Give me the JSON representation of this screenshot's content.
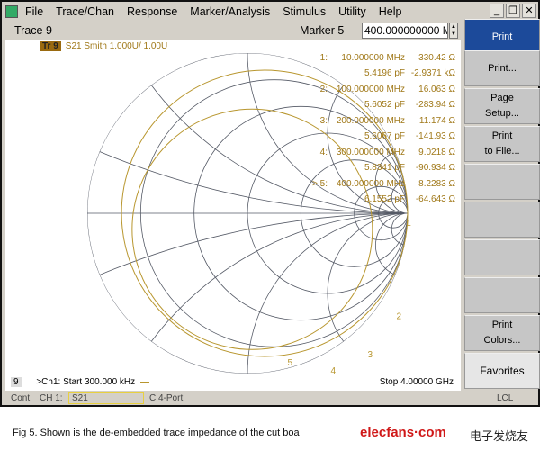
{
  "menubar": {
    "items": [
      "File",
      "Trace/Chan",
      "Response",
      "Marker/Analysis",
      "Stimulus",
      "Utility",
      "Help"
    ]
  },
  "window_controls": [
    "_",
    "❐",
    "✕"
  ],
  "tracebar": {
    "title": "Trace 9",
    "marker_label": "Marker 5",
    "marker_value": "400.000000000 MHz"
  },
  "trace_label": {
    "badge": "Tr 9",
    "text": "S21 Smith 1.000U/  1.00U"
  },
  "markers": [
    {
      "id": "1:",
      "freq": "10.000000 MHz",
      "r": "330.42 Ω",
      "c": "5.4196 pF",
      "x": "-2.9371 kΩ"
    },
    {
      "id": "2:",
      "freq": "100.000000 MHz",
      "r": "16.063 Ω",
      "c": "5.6052 pF",
      "x": "-283.94 Ω"
    },
    {
      "id": "3:",
      "freq": "200.000000 MHz",
      "r": "11.174 Ω",
      "c": "5.6067 pF",
      "x": "-141.93 Ω"
    },
    {
      "id": "4:",
      "freq": "300.000000 MHz",
      "r": "9.0218 Ω",
      "c": "5.8341 pF",
      "x": "-90.934 Ω"
    },
    {
      "id": "> 5:",
      "freq": "400.000000 MHz",
      "r": "8.2283 Ω",
      "c": "6.1552 pF",
      "x": "-64.643 Ω"
    }
  ],
  "chart_marker_labels": [
    "1",
    "2",
    "3",
    "4",
    "5"
  ],
  "colors": {
    "trace": "#b8962e",
    "grid": "#555a66",
    "active_button": "#1c4a9a"
  },
  "footer": {
    "channel_badge": "9",
    "start": ">Ch1: Start  300.000 kHz",
    "stop": "Stop  4.00000 GHz"
  },
  "sidebar": {
    "buttons": [
      "Print",
      "Print...",
      "Page\nSetup...",
      "Print\nto File...",
      "",
      "",
      "",
      "",
      "Print\nColors...",
      "Favorites"
    ]
  },
  "status": {
    "mode": "Cont.",
    "channel": "CH 1:",
    "param": "S21",
    "cal": "C  4-Port",
    "remote": "LCL"
  },
  "caption": "Fig 5. Shown is the de-embedded trace impedance of the cut boa",
  "watermark": {
    "text": "elecfans·com",
    "cn": "电子发烧友"
  }
}
